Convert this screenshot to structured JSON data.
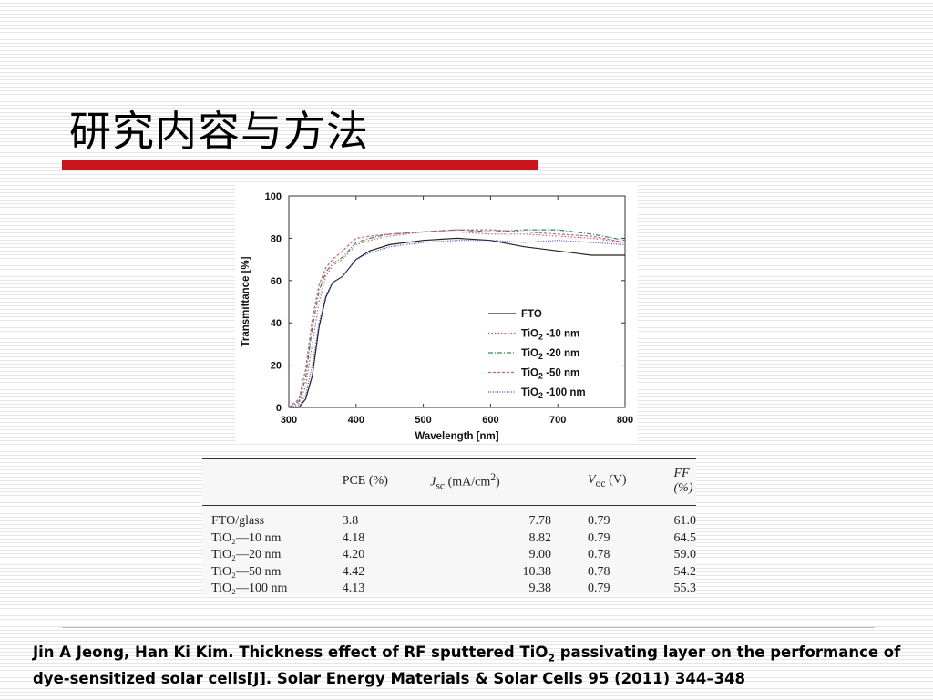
{
  "slide": {
    "title": "研究内容与方法"
  },
  "colors": {
    "accent_red": "#c8141c",
    "FTO": "#222222",
    "TiO2_10nm": "#e05a5a",
    "TiO2_20nm": "#2f8f4a",
    "TiO2_50nm": "#d05a9a",
    "TiO2_100nm": "#4a4ad8"
  },
  "chart_data": {
    "type": "line",
    "xlabel": "Wavelength [nm]",
    "ylabel": "Transmittance [%]",
    "xlim": [
      300,
      800
    ],
    "ylim": [
      0,
      100
    ],
    "xticks": [
      300,
      400,
      500,
      600,
      700,
      800
    ],
    "yticks": [
      0,
      20,
      40,
      60,
      80,
      100
    ],
    "grid": false,
    "legend_position": "lower-right",
    "x": [
      300,
      315,
      325,
      335,
      345,
      355,
      365,
      380,
      400,
      420,
      450,
      500,
      550,
      600,
      650,
      700,
      750,
      800
    ],
    "series": [
      {
        "name": "FTO",
        "style": "solid",
        "values": [
          0,
          0,
          4,
          15,
          38,
          52,
          59,
          62,
          70,
          74,
          77,
          79,
          80,
          79,
          76,
          74,
          72,
          72
        ]
      },
      {
        "name": "TiO2 -10 nm",
        "style": "dotted",
        "values": [
          0,
          2,
          10,
          30,
          50,
          62,
          67,
          70,
          77,
          79,
          81,
          83,
          83,
          82,
          82,
          81,
          80,
          78
        ]
      },
      {
        "name": "TiO2 -20 nm",
        "style": "dashdot",
        "values": [
          0,
          3,
          14,
          38,
          55,
          64,
          68,
          71,
          78,
          80,
          82,
          83,
          84,
          83,
          84,
          84,
          82,
          79
        ]
      },
      {
        "name": "TiO2 -50 nm",
        "style": "dashed",
        "values": [
          0,
          4,
          18,
          42,
          58,
          66,
          70,
          74,
          80,
          81,
          82,
          83,
          84,
          84,
          83,
          82,
          81,
          78
        ]
      },
      {
        "name": "TiO2 -100 nm",
        "style": "dense-dotted",
        "values": [
          0,
          1,
          6,
          20,
          40,
          53,
          59,
          62,
          70,
          73,
          76,
          78,
          79,
          79,
          78,
          79,
          78,
          77
        ]
      }
    ],
    "legend_labels": [
      {
        "base": "FTO",
        "sub": "",
        "tail": ""
      },
      {
        "base": "TiO",
        "sub": "2",
        "tail": " -10 nm"
      },
      {
        "base": "TiO",
        "sub": "2",
        "tail": " -20 nm"
      },
      {
        "base": "TiO",
        "sub": "2",
        "tail": " -50 nm"
      },
      {
        "base": "TiO",
        "sub": "2",
        "tail": " -100 nm"
      }
    ]
  },
  "table": {
    "headers": {
      "col0": "",
      "pce": "PCE (%)",
      "jsc_main": "J",
      "jsc_sub": "sc",
      "jsc_unit": " (mA/cm",
      "jsc_sup": "2",
      "jsc_close": ")",
      "voc_main": "V",
      "voc_sub": "oc",
      "voc_unit": " (V)",
      "ff": "FF (%)"
    },
    "rows": [
      {
        "sample": "FTO/glass",
        "pce": "3.8",
        "jsc": "7.78",
        "voc": "0.79",
        "ff": "61.0"
      },
      {
        "sample": "TiO₂—10 nm",
        "pce": "4.18",
        "jsc": "8.82",
        "voc": "0.79",
        "ff": "64.5"
      },
      {
        "sample": "TiO₂—20 nm",
        "pce": "4.20",
        "jsc": "9.00",
        "voc": "0.78",
        "ff": "59.0"
      },
      {
        "sample": "TiO₂—50 nm",
        "pce": "4.42",
        "jsc": "10.38",
        "voc": "0.78",
        "ff": "54.2"
      },
      {
        "sample": "TiO₂—100 nm",
        "pce": "4.13",
        "jsc": "9.38",
        "voc": "0.79",
        "ff": "55.3"
      }
    ]
  },
  "citation": {
    "part1": "Jin A Jeong, Han Ki Kim. Thickness effect of RF sputtered TiO",
    "sub": "2",
    "part2": " passivating layer on the performance of dye-sensitized solar cells[J]. Solar Energy Materials & Solar Cells 95 (2011) 344–348"
  }
}
